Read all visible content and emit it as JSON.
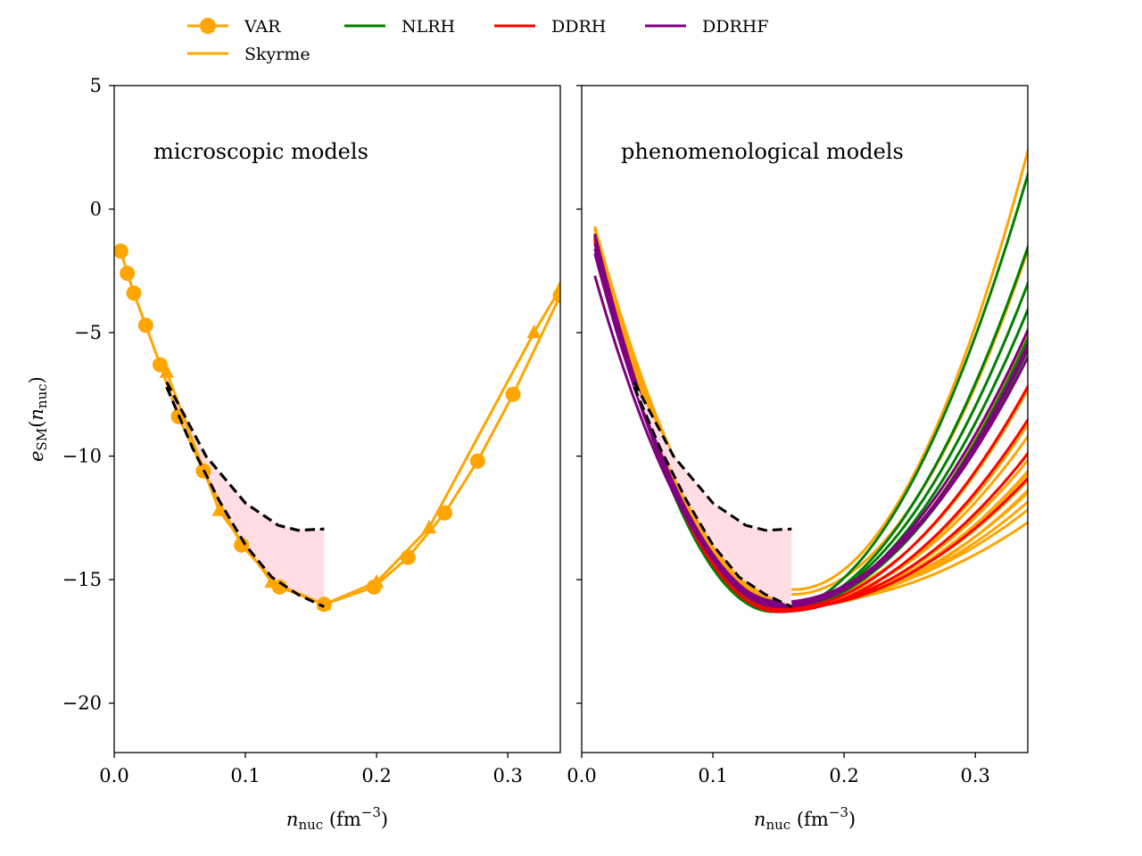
{
  "chart_data": [
    {
      "type": "line",
      "panel": "left",
      "annotation": "microscopic models",
      "xlabel": "n_nuc (fm^-3)",
      "ylabel": "e_SM(n_nuc)",
      "xlim": [
        0.0,
        0.34
      ],
      "ylim": [
        -22,
        5
      ],
      "xticks": [
        "0.0",
        "0.1",
        "0.2",
        "0.3"
      ],
      "yticks": [
        "5",
        "0",
        "−5",
        "−10",
        "−15",
        "−20"
      ],
      "band": {
        "name": "constraint band",
        "color": "#ffdde2",
        "upper": {
          "x": [
            0.04,
            0.07,
            0.1,
            0.125,
            0.14,
            0.16
          ],
          "y": [
            -7.0,
            -10.0,
            -11.9,
            -12.8,
            -13.0,
            -12.95
          ]
        },
        "lower": {
          "x": [
            0.04,
            0.06,
            0.08,
            0.1,
            0.12,
            0.14,
            0.16
          ],
          "y": [
            -7.2,
            -9.7,
            -11.8,
            -13.6,
            -14.9,
            -15.6,
            -16.1
          ]
        }
      },
      "series": [
        {
          "name": "VAR",
          "color": "#ffa500",
          "marker": "circle",
          "x": [
            0.005,
            0.01,
            0.015,
            0.024,
            0.035,
            0.049,
            0.068,
            0.097,
            0.126,
            0.16,
            0.198,
            0.224,
            0.252,
            0.277,
            0.304,
            0.34
          ],
          "y": [
            -1.7,
            -2.6,
            -3.4,
            -4.7,
            -6.3,
            -8.4,
            -10.6,
            -13.6,
            -15.3,
            -16.0,
            -15.3,
            -14.1,
            -12.3,
            -10.2,
            -7.5,
            -3.5
          ]
        },
        {
          "name": "VAR",
          "color": "#ffa500",
          "marker": "triangle",
          "x": [
            0.04,
            0.08,
            0.12,
            0.16,
            0.2,
            0.24,
            0.32,
            0.34
          ],
          "y": [
            -6.6,
            -12.2,
            -15.1,
            -16.0,
            -15.1,
            -12.9,
            -5.0,
            -3.2
          ]
        }
      ]
    },
    {
      "type": "line",
      "panel": "right",
      "annotation": "phenomenological models",
      "xlabel": "n_nuc (fm^-3)",
      "xlim": [
        0.0,
        0.34
      ],
      "ylim": [
        -22,
        5
      ],
      "xticks": [
        "0.0",
        "0.1",
        "0.2",
        "0.3"
      ],
      "band": {
        "name": "constraint band",
        "color": "#ffdde2",
        "upper": {
          "x": [
            0.04,
            0.07,
            0.1,
            0.125,
            0.14,
            0.16
          ],
          "y": [
            -7.0,
            -10.0,
            -11.9,
            -12.8,
            -13.0,
            -12.95
          ]
        },
        "lower": {
          "x": [
            0.04,
            0.06,
            0.08,
            0.1,
            0.12,
            0.14,
            0.16
          ],
          "y": [
            -7.2,
            -9.7,
            -11.8,
            -13.6,
            -14.9,
            -15.6,
            -16.1
          ]
        }
      },
      "model_families": [
        {
          "name": "Skyrme",
          "color": "#ffa500",
          "curves": [
            {
              "y0": -0.7,
              "n0": 0.162,
              "e0": -15.4,
              "ar": 560
            },
            {
              "y0": -0.8,
              "n0": 0.16,
              "e0": -15.6,
              "ar": 430
            },
            {
              "y0": -1.0,
              "n0": 0.158,
              "e0": -16.0,
              "ar": 330
            },
            {
              "y0": -1.0,
              "n0": 0.16,
              "e0": -15.9,
              "ar": 265
            },
            {
              "y0": -1.1,
              "n0": 0.16,
              "e0": -16.0,
              "ar": 225
            },
            {
              "y0": -1.0,
              "n0": 0.158,
              "e0": -16.0,
              "ar": 205
            },
            {
              "y0": -1.1,
              "n0": 0.16,
              "e0": -16.1,
              "ar": 192
            },
            {
              "y0": -1.1,
              "n0": 0.16,
              "e0": -16.0,
              "ar": 180
            },
            {
              "y0": -1.0,
              "n0": 0.162,
              "e0": -16.0,
              "ar": 170
            },
            {
              "y0": -1.2,
              "n0": 0.158,
              "e0": -16.1,
              "ar": 163
            },
            {
              "y0": -1.1,
              "n0": 0.16,
              "e0": -16.0,
              "ar": 155
            },
            {
              "y0": -1.1,
              "n0": 0.161,
              "e0": -16.1,
              "ar": 147
            },
            {
              "y0": -1.2,
              "n0": 0.159,
              "e0": -16.0,
              "ar": 138
            },
            {
              "y0": -1.1,
              "n0": 0.16,
              "e0": -16.0,
              "ar": 128
            },
            {
              "y0": -1.0,
              "n0": 0.16,
              "e0": -15.9,
              "ar": 115
            },
            {
              "y0": -1.1,
              "n0": 0.158,
              "e0": -16.0,
              "ar": 100
            }
          ]
        },
        {
          "name": "NLRH",
          "color": "#008000",
          "curves": [
            {
              "y0": -1.0,
              "n0": 0.146,
              "e0": -16.3,
              "ar": 470
            },
            {
              "y0": -1.1,
              "n0": 0.148,
              "e0": -16.3,
              "ar": 400
            },
            {
              "y0": -1.1,
              "n0": 0.15,
              "e0": -16.2,
              "ar": 365
            },
            {
              "y0": -1.2,
              "n0": 0.149,
              "e0": -16.3,
              "ar": 335
            },
            {
              "y0": -1.2,
              "n0": 0.152,
              "e0": -16.2,
              "ar": 310
            },
            {
              "y0": -1.1,
              "n0": 0.15,
              "e0": -16.2,
              "ar": 290
            }
          ]
        },
        {
          "name": "DDRH",
          "color": "#ff0000",
          "curves": [
            {
              "y0": -1.2,
              "n0": 0.152,
              "e0": -16.2,
              "ar": 255
            },
            {
              "y0": -1.3,
              "n0": 0.15,
              "e0": -16.3,
              "ar": 215
            },
            {
              "y0": -1.2,
              "n0": 0.153,
              "e0": -16.2,
              "ar": 180
            },
            {
              "y0": -1.3,
              "n0": 0.152,
              "e0": -16.2,
              "ar": 150
            }
          ]
        },
        {
          "name": "DDRHF",
          "color": "#800080",
          "curves": [
            {
              "y0": -1.0,
              "n0": 0.15,
              "e0": -16.1,
              "ar": 310
            },
            {
              "y0": -1.4,
              "n0": 0.152,
              "e0": -16.1,
              "ar": 300
            },
            {
              "y0": -1.8,
              "n0": 0.151,
              "e0": -16.0,
              "ar": 290
            },
            {
              "y0": -2.7,
              "n0": 0.152,
              "e0": -15.9,
              "ar": 280
            },
            {
              "y0": -1.6,
              "n0": 0.154,
              "e0": -16.0,
              "ar": 300
            }
          ]
        }
      ]
    }
  ],
  "legend": {
    "placement": "top",
    "entries": [
      {
        "label": "VAR",
        "color": "#ffa500",
        "marker": "circle"
      },
      {
        "label": "Skyrme",
        "color": "#ffa500",
        "marker": "none"
      },
      {
        "label": "NLRH",
        "color": "#008000",
        "marker": "none"
      },
      {
        "label": "DDRH",
        "color": "#ff0000",
        "marker": "none"
      },
      {
        "label": "DDRHF",
        "color": "#800080",
        "marker": "none"
      }
    ]
  },
  "labels": {
    "ylabel_base": "e",
    "ylabel_sub": "SM",
    "ylabel_paren_open": "(",
    "ylabel_var": "n",
    "ylabel_var_sub": "nuc",
    "ylabel_paren_close": ")",
    "xlabel_base": "n",
    "xlabel_sub": "nuc",
    "xlabel_unit": " (fm",
    "xlabel_exp": "−3",
    "xlabel_close": ")"
  }
}
